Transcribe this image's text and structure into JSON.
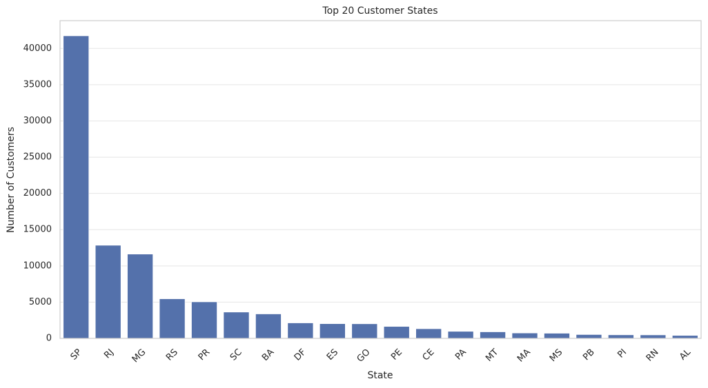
{
  "chart_data": {
    "type": "bar",
    "title": "Top 20 Customer States",
    "x_label": "State",
    "y_label": "Number of Customers",
    "categories": [
      "SP",
      "RJ",
      "MG",
      "RS",
      "PR",
      "SC",
      "BA",
      "DF",
      "ES",
      "GO",
      "PE",
      "CE",
      "PA",
      "MT",
      "MA",
      "MS",
      "PB",
      "PI",
      "RN",
      "AL"
    ],
    "values": [
      41746,
      12852,
      11635,
      5466,
      5045,
      3637,
      3380,
      2140,
      2033,
      2020,
      1652,
      1336,
      975,
      907,
      747,
      715,
      536,
      495,
      485,
      413
    ],
    "color": "#5471ab",
    "ylim": [
      0,
      43833
    ],
    "yticks": [
      0,
      5000,
      10000,
      15000,
      20000,
      25000,
      30000,
      35000,
      40000
    ],
    "grid": true
  }
}
